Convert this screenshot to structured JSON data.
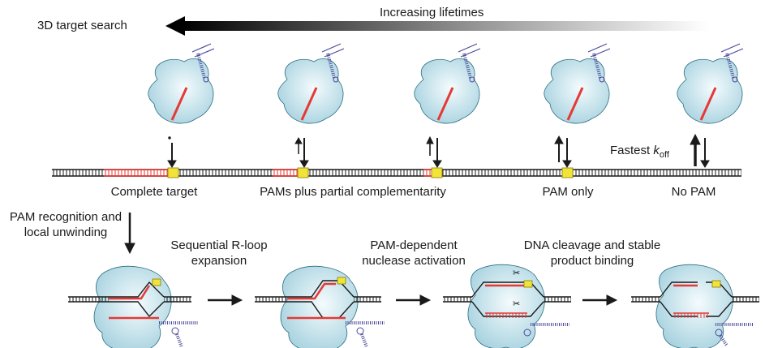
{
  "header": {
    "lifetimes_label": "Increasing lifetimes",
    "search_label": "3D target search"
  },
  "states": [
    {
      "label": "Complete target"
    },
    {
      "label": "PAMs plus partial complementarity"
    },
    {
      "label": "PAM only"
    },
    {
      "label": "No PAM"
    }
  ],
  "koff": {
    "prefix": "Fastest ",
    "k": "k",
    "sub": "off"
  },
  "steps": {
    "pam_recognition_1": "PAM recognition and",
    "pam_recognition_2": "local unwinding",
    "rloop_1": "Sequential R-loop",
    "rloop_2": "expansion",
    "nuclease_1": "PAM-dependent",
    "nuclease_2": "nuclease activation",
    "cleavage_1": "DNA cleavage and stable",
    "cleavage_2": "product binding"
  },
  "colors": {
    "protein": "#bfe0ea",
    "rna": "#e53935",
    "pam": "#f2e33a",
    "dna": "#1a1a1a",
    "guide_rna": "#4a4a9a"
  }
}
